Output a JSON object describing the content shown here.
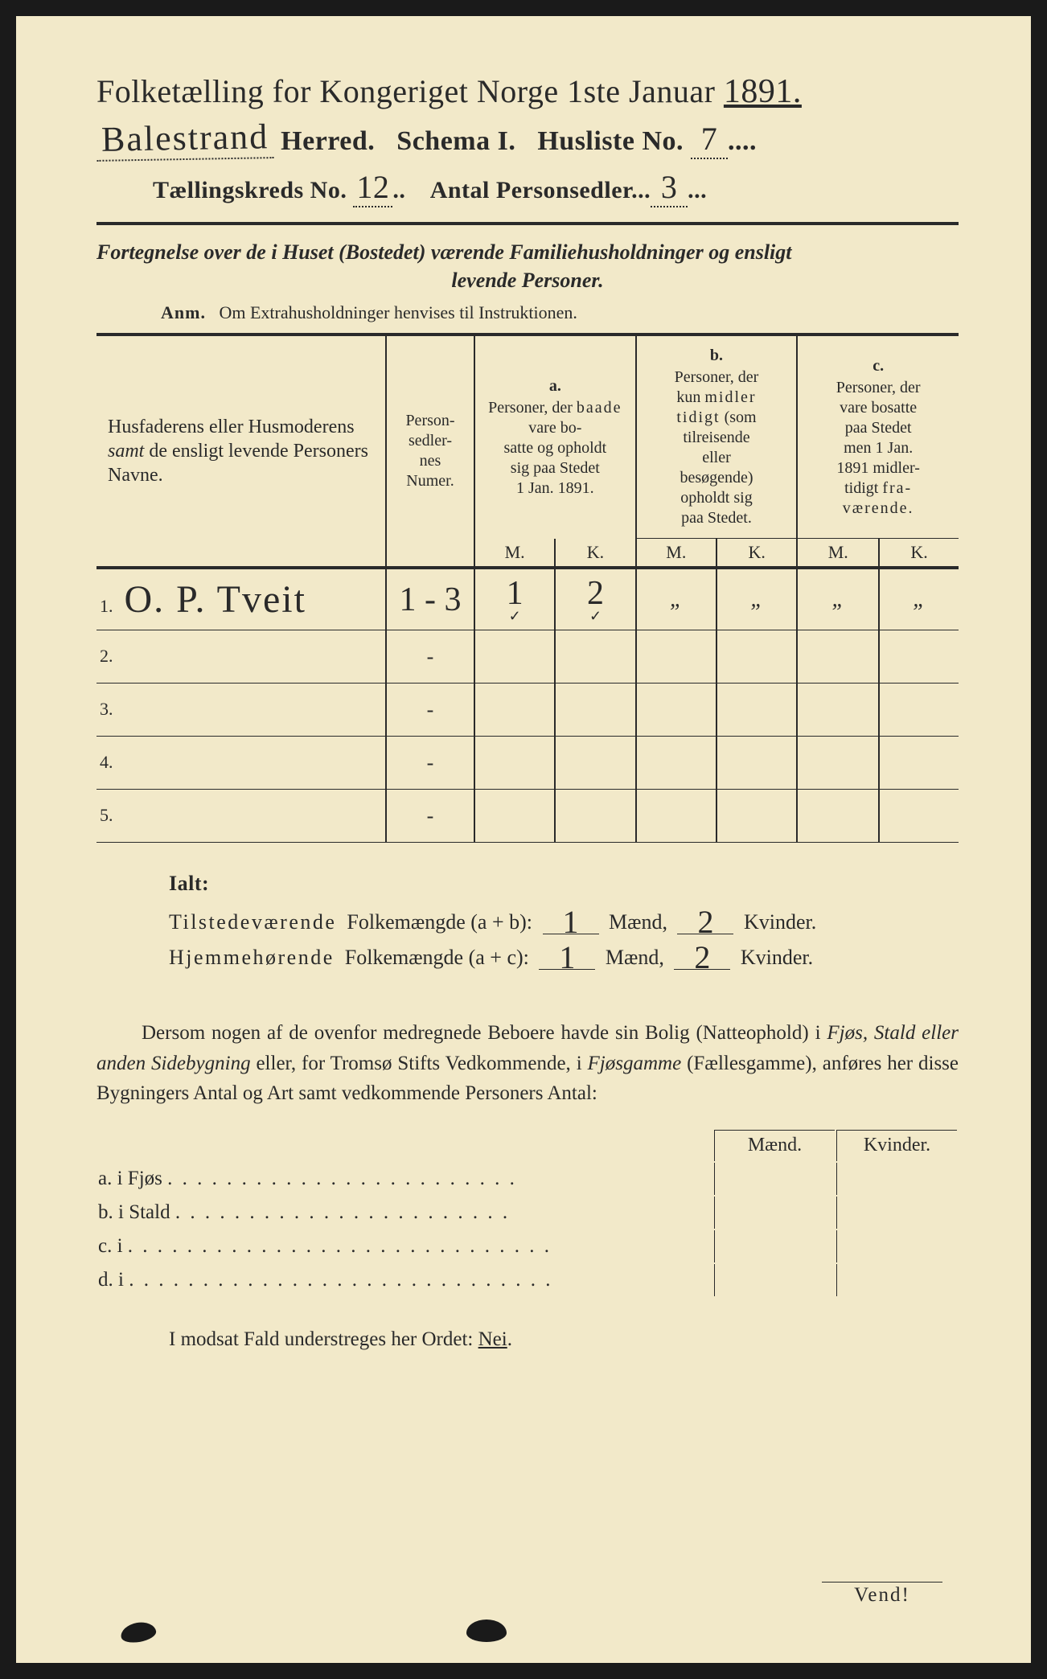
{
  "header": {
    "title_prefix": "Folketælling for Kongeriget Norge 1ste Januar",
    "year": "1891.",
    "herred_value": "Balestrand",
    "herred_label": "Herred.",
    "schema_label": "Schema I.",
    "husliste_label": "Husliste No.",
    "husliste_value": "7",
    "kreds_label": "Tællingskreds No.",
    "kreds_value": "12",
    "personsedler_label": "Antal Personsedler",
    "personsedler_value": "3"
  },
  "subtitle": {
    "line1": "Fortegnelse over de i Huset (Bostedet) værende Familiehusholdninger og ensligt",
    "line2": "levende Personer.",
    "anm_label": "Anm.",
    "anm_text": "Om Extrahusholdninger henvises til Instruktionen."
  },
  "table": {
    "col_names": "Husfaderens eller Husmoderens samt de ensligt levende Personers Navne.",
    "col_num": "Personsedlernes Numer.",
    "col_a_label": "a.",
    "col_a_text": "Personer, der baade vare bosatte og opholdt sig paa Stedet 1 Jan. 1891.",
    "col_b_label": "b.",
    "col_b_text": "Personer, der kun midlertidigt (som tilreisende eller besøgende) opholdt sig paa Stedet.",
    "col_c_label": "c.",
    "col_c_text": "Personer, der vare bosatte paa Stedet men 1 Jan. 1891 midlertidigt fraværende.",
    "m_label": "M.",
    "k_label": "K.",
    "rows": [
      {
        "n": "1.",
        "name": "O. P. Tveit",
        "num": "1 - 3",
        "a_m": "1",
        "a_k": "2",
        "b_m": "„",
        "b_k": "„",
        "c_m": "„",
        "c_k": "„"
      },
      {
        "n": "2.",
        "name": "",
        "num": "-",
        "a_m": "",
        "a_k": "",
        "b_m": "",
        "b_k": "",
        "c_m": "",
        "c_k": ""
      },
      {
        "n": "3.",
        "name": "",
        "num": "-",
        "a_m": "",
        "a_k": "",
        "b_m": "",
        "b_k": "",
        "c_m": "",
        "c_k": ""
      },
      {
        "n": "4.",
        "name": "",
        "num": "-",
        "a_m": "",
        "a_k": "",
        "b_m": "",
        "b_k": "",
        "c_m": "",
        "c_k": ""
      },
      {
        "n": "5.",
        "name": "",
        "num": "-",
        "a_m": "",
        "a_k": "",
        "b_m": "",
        "b_k": "",
        "c_m": "",
        "c_k": ""
      }
    ]
  },
  "ialt": {
    "title": "Ialt:",
    "line1_label_a": "Tilstedeværende",
    "line1_label_b": "Folkemængde (a + b):",
    "line1_m": "1",
    "line1_k": "2",
    "line2_label_a": "Hjemmehørende",
    "line2_label_b": "Folkemængde (a + c):",
    "line2_m": "1",
    "line2_k": "2",
    "maend": "Mænd,",
    "kvinder": "Kvinder."
  },
  "para": {
    "text1": "Dersom nogen af de ovenfor medregnede Beboere havde sin Bolig (Natteophold) i ",
    "em1": "Fjøs, Stald eller anden Sidebygning",
    "text2": " eller, for Tromsø Stifts Vedkommende, i ",
    "em2": "Fjøsgamme",
    "text3": " (Fællesgamme), anføres her disse Bygningers Antal og Art samt vedkommende Personers Antal:"
  },
  "small_table": {
    "maend": "Mænd.",
    "kvinder": "Kvinder.",
    "rows": [
      {
        "label": "a.  i      Fjøs"
      },
      {
        "label": "b.  i      Stald"
      },
      {
        "label": "c.  i"
      },
      {
        "label": "d.  i"
      }
    ]
  },
  "modsat": "I modsat Fald understreges her Ordet: Nei.",
  "vend": "Vend!"
}
